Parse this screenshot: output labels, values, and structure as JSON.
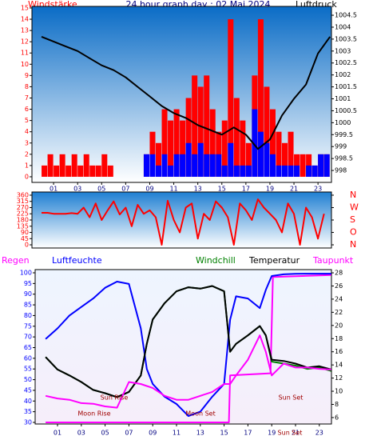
{
  "chart_data": [
    {
      "type": "bar",
      "title": "24 hour graph day : 02 Mai 2024",
      "y_label": "Windstärke",
      "y2_label": "Luftdruck",
      "xlim": [
        -0.8,
        24.12
      ],
      "xticks": [
        {
          "value": 1,
          "label": "01"
        },
        {
          "value": 3,
          "label": "03"
        },
        {
          "value": 5,
          "label": "05"
        },
        {
          "value": 7,
          "label": "07"
        },
        {
          "value": 9,
          "label": "09"
        },
        11,
        13,
        15,
        17,
        19,
        21,
        23
      ],
      "ylim": [
        -0.5,
        15.14
      ],
      "yticks": [
        0,
        1,
        2,
        3,
        4,
        5,
        6,
        7,
        8,
        9,
        10,
        11,
        12,
        13,
        14,
        15
      ],
      "y2lim": [
        997.5,
        1004.87
      ],
      "y2ticks": [
        998,
        998.5,
        999,
        999.5,
        1000,
        1000.5,
        1001,
        1001.5,
        1002,
        1002.5,
        1003,
        1003.5,
        1004,
        1004.5
      ],
      "series": [
        {
          "color": "#ff0000",
          "x": [
            0,
            0.5,
            1,
            1.5,
            2,
            2.5,
            3,
            3.5,
            4,
            4.5,
            5,
            5.5,
            6,
            6.5,
            7,
            7.5,
            8,
            8.5,
            9,
            9.5,
            10,
            10.5,
            11,
            11.5,
            12,
            12.5,
            13,
            13.5,
            14,
            14.5,
            15,
            15.5,
            16,
            16.5,
            17,
            17.5,
            18,
            18.5,
            19,
            19.5,
            20,
            20.5,
            21,
            21.5,
            22,
            22.5,
            23,
            23.5
          ],
          "values": [
            1,
            2,
            1,
            2,
            1,
            2,
            1,
            2,
            1,
            1,
            2,
            1,
            0,
            0,
            0,
            0,
            0,
            2,
            4,
            3,
            6,
            5,
            6,
            5,
            7,
            9,
            8,
            9,
            6,
            4,
            5,
            14,
            7,
            5,
            3,
            9,
            14,
            8,
            6,
            4,
            3,
            4,
            2,
            2,
            2,
            1,
            2,
            2
          ]
        },
        {
          "color": "#0000ff",
          "x": [
            0,
            0.5,
            1,
            1.5,
            2,
            2.5,
            3,
            3.5,
            4,
            4.5,
            5,
            5.5,
            6,
            6.5,
            7,
            7.5,
            8,
            8.5,
            9,
            9.5,
            10,
            10.5,
            11,
            11.5,
            12,
            12.5,
            13,
            13.5,
            14,
            14.5,
            15,
            15.5,
            16,
            16.5,
            17,
            17.5,
            18,
            18.5,
            19,
            19.5,
            20,
            20.5,
            21,
            21.5,
            22,
            22.5,
            23,
            23.5
          ],
          "values": [
            0,
            0,
            0,
            0,
            0,
            0,
            0,
            0,
            0,
            0,
            0,
            0,
            0,
            0,
            0,
            0,
            0,
            2,
            2,
            1,
            2,
            1,
            2,
            2,
            3,
            2,
            3,
            2,
            2,
            2,
            1,
            3,
            1,
            1,
            1,
            6,
            4,
            3,
            2,
            1,
            1,
            1,
            1,
            0,
            1,
            1,
            2,
            2
          ]
        },
        {
          "type": "line",
          "axis": "y2",
          "color": "#000000",
          "x": [
            0,
            1,
            2,
            3,
            4,
            5,
            6,
            7,
            8,
            9,
            10,
            11,
            12,
            13,
            14,
            15,
            16,
            17,
            18,
            19,
            20,
            21,
            22,
            23,
            24
          ],
          "values": [
            1003.6,
            1003.4,
            1003.2,
            1003.0,
            1002.7,
            1002.4,
            1002.2,
            1001.9,
            1001.5,
            1001.1,
            1000.7,
            1000.4,
            1000.2,
            999.9,
            999.7,
            999.5,
            999.8,
            999.5,
            998.9,
            999.3,
            1000.3,
            1001.0,
            1001.6,
            1002.9,
            1003.6
          ]
        }
      ]
    },
    {
      "type": "line",
      "xlim": [
        -0.8,
        24.12
      ],
      "ylim": [
        -23,
        383
      ],
      "yticks": [
        0,
        45,
        90,
        135,
        180,
        225,
        270,
        315,
        360
      ],
      "y2lim": [
        -23,
        383
      ],
      "y2ticks": [
        {
          "value": 360,
          "label": "N"
        },
        {
          "value": 270,
          "label": "W"
        },
        {
          "value": 180,
          "label": "S"
        },
        {
          "value": 90,
          "label": "O"
        },
        {
          "value": 0,
          "label": "N"
        }
      ],
      "series": [
        {
          "color": "#ff0000",
          "x": [
            0,
            0.5,
            1,
            1.5,
            2,
            2.5,
            3,
            3.5,
            4,
            4.5,
            5,
            5.5,
            6,
            6.5,
            7,
            7.5,
            8,
            8.5,
            9,
            9.5,
            10,
            10.5,
            11,
            11.5,
            12,
            12.5,
            13,
            13.5,
            14,
            14.5,
            15,
            15.5,
            16,
            16.5,
            17,
            17.5,
            18,
            18.5,
            19,
            19.5,
            20,
            20.5,
            21,
            21.5,
            22,
            22.5,
            23,
            23.5
          ],
          "values": [
            232,
            232,
            225,
            225,
            225,
            230,
            225,
            270,
            200,
            300,
            180,
            250,
            315,
            220,
            270,
            135,
            290,
            225,
            250,
            200,
            0,
            320,
            180,
            90,
            270,
            300,
            45,
            225,
            180,
            315,
            270,
            200,
            0,
            300,
            250,
            180,
            330,
            270,
            225,
            180,
            90,
            300,
            225,
            0,
            270,
            200,
            45,
            225
          ]
        }
      ]
    },
    {
      "type": "line",
      "xlim": [
        -0.88,
        24.02
      ],
      "xticks": [
        {
          "value": 1,
          "label": "01"
        },
        {
          "value": 3,
          "label": "03"
        },
        {
          "value": 5,
          "label": "05"
        },
        {
          "value": 7,
          "label": "07"
        },
        {
          "value": 9,
          "label": "09"
        },
        11,
        13,
        15,
        17,
        19,
        21,
        23
      ],
      "ylim": [
        29.25,
        101.5
      ],
      "yticks": [
        30,
        35,
        40,
        45,
        50,
        55,
        60,
        65,
        70,
        75,
        80,
        85,
        90,
        95,
        100
      ],
      "y2lim": [
        5.02,
        28.49
      ],
      "y2ticks": [
        6,
        8,
        10,
        12,
        14,
        16,
        18,
        20,
        22,
        24,
        26,
        28
      ],
      "annotations": [
        "Sun Rise",
        "Moon Rise",
        "Moon Set",
        "Sun Set",
        "Sun Set"
      ],
      "series": [
        {
          "name": "Regen",
          "color": "#ff00ff",
          "x": [
            0,
            15.4,
            15.5,
            18.9,
            19.1,
            24
          ],
          "values": [
            30,
            30,
            52,
            53,
            98,
            99
          ]
        },
        {
          "name": "Luftfeuchte",
          "color": "#0000ff",
          "x": [
            0,
            1,
            2,
            3,
            4,
            5,
            6,
            7,
            8,
            8.5,
            9,
            10,
            11,
            12,
            13,
            14,
            15,
            15.5,
            16,
            17,
            18,
            18.5,
            19,
            20,
            21,
            22,
            23,
            24
          ],
          "values": [
            69,
            74,
            80,
            84,
            88,
            93,
            95.9,
            94.8,
            74,
            55,
            48,
            42,
            38.6,
            33,
            35,
            42,
            48,
            78,
            89,
            88,
            83.5,
            92,
            98.5,
            99.3,
            99.5,
            99.6,
            99.6,
            99.6
          ]
        },
        {
          "name": "Windchill",
          "axis": "y2",
          "color": "#008000",
          "x": [
            0,
            1,
            2,
            3,
            4,
            5,
            6,
            7,
            8,
            8.5,
            9,
            10,
            11,
            12,
            13,
            14,
            15,
            15.5,
            16,
            17,
            18,
            18.5,
            19,
            20,
            21,
            22,
            23,
            24
          ],
          "values": [
            15.2,
            13.3,
            12.4,
            11.4,
            10.2,
            9.7,
            9.1,
            9.9,
            12.4,
            17.2,
            20.9,
            23.4,
            25.2,
            25.8,
            25.6,
            26,
            25.2,
            16,
            17.2,
            18.5,
            19.9,
            18.5,
            14.5,
            14.2,
            13.9,
            13.4,
            13.6,
            13.1
          ]
        },
        {
          "name": "Temperatur",
          "axis": "y2",
          "color": "#000000",
          "x": [
            0,
            1,
            2,
            3,
            4,
            5,
            6,
            7,
            8,
            8.5,
            9,
            10,
            11,
            12,
            13,
            14,
            15,
            15.5,
            16,
            17,
            18,
            18.5,
            19,
            20,
            21,
            22,
            23,
            24
          ],
          "values": [
            15.2,
            13.3,
            12.4,
            11.4,
            10.2,
            9.7,
            9.1,
            9.9,
            12.4,
            17.2,
            20.9,
            23.4,
            25.2,
            25.8,
            25.6,
            26,
            25.2,
            16,
            17.2,
            18.5,
            19.9,
            18.5,
            14.8,
            14.6,
            14.2,
            13.6,
            13.8,
            13.3
          ]
        },
        {
          "name": "Taupunkt",
          "axis": "y2",
          "color": "#ff00ff",
          "x": [
            0,
            1,
            2,
            3,
            4,
            5,
            6,
            7,
            8,
            8.5,
            9,
            10,
            11,
            12,
            13,
            14,
            15,
            15.5,
            16,
            17,
            18,
            18.5,
            19,
            20,
            21,
            22,
            23,
            24
          ],
          "values": [
            9.3,
            8.9,
            8.7,
            8.2,
            8.1,
            7.7,
            7.5,
            11.4,
            11.1,
            10.8,
            10.5,
            9.3,
            8.7,
            8.7,
            9.3,
            9.9,
            11.1,
            11.1,
            12.4,
            14.8,
            18.5,
            16,
            12.4,
            14.2,
            13.6,
            13.6,
            13.4,
            13.3
          ]
        }
      ]
    }
  ]
}
